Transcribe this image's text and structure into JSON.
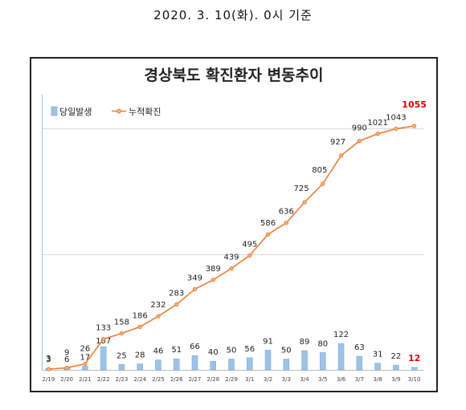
{
  "header": {
    "date_text": "2020. 3. 10(화). 0시 기준"
  },
  "chart_data": {
    "type": "bar",
    "title": "경상북도 확진환자 변동추이",
    "categories": [
      "2/19",
      "2/20",
      "2/21",
      "2/22",
      "2/23",
      "2/24",
      "2/25",
      "2/26",
      "2/27",
      "2/28",
      "2/29",
      "3/1",
      "3/2",
      "3/3",
      "3/4",
      "3/5",
      "3/6",
      "3/7",
      "3/8",
      "3/9",
      "3/10"
    ],
    "series": [
      {
        "name": "당일발생",
        "kind": "bar",
        "color": "#9dc3e6",
        "values": [
          3,
          6,
          17,
          107,
          25,
          28,
          46,
          51,
          66,
          40,
          50,
          56,
          91,
          50,
          89,
          80,
          122,
          63,
          31,
          22,
          12
        ]
      },
      {
        "name": "누적확진",
        "kind": "line",
        "color": "#ed7d31",
        "values": [
          3,
          9,
          26,
          133,
          158,
          186,
          232,
          283,
          349,
          389,
          439,
          495,
          586,
          636,
          725,
          805,
          927,
          990,
          1021,
          1043,
          1055
        ]
      }
    ],
    "highlight_color": "#e00000",
    "legend_position": "top-left",
    "grid": true
  }
}
